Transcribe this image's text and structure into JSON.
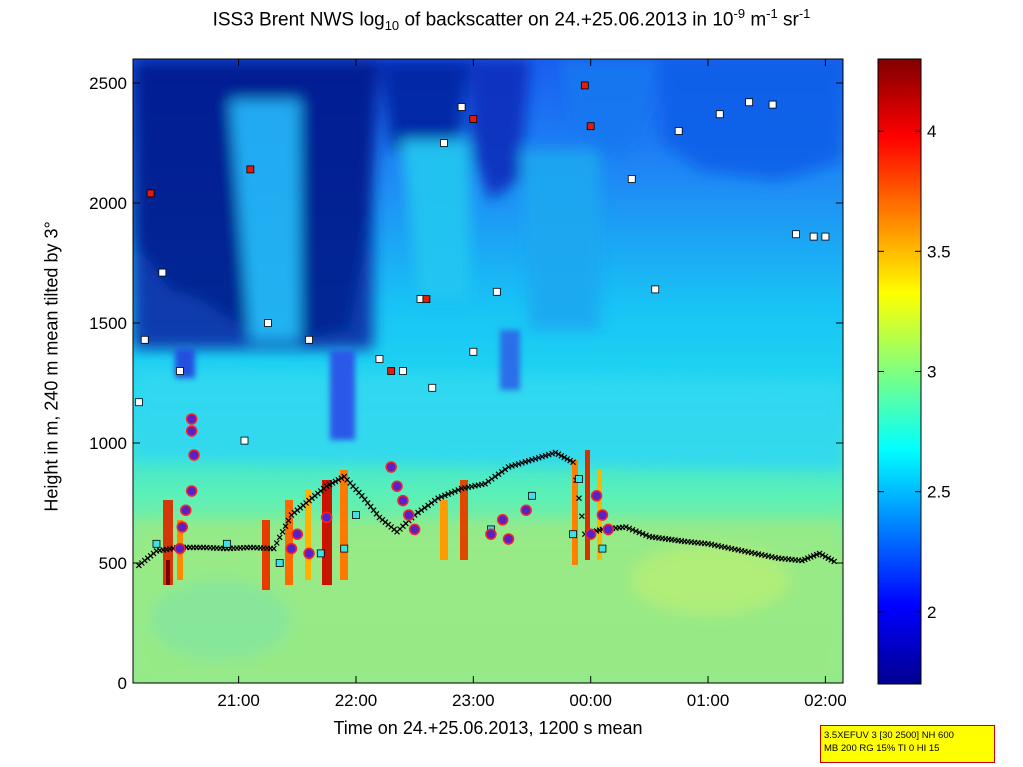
{
  "chart_data": {
    "type": "heatmap",
    "title": {
      "prefix": "ISS3 Brent NWS log",
      "sub": "10",
      "middle": " of backscatter on 24.+25.06.2013 in 10",
      "sup1": "-9",
      "unit1": " m",
      "sup2": "-1",
      "unit2": " sr",
      "sup3": "-1"
    },
    "xlabel": "Time on 24.+25.06.2013, 1200 s mean",
    "ylabel": "Height in m, 240 m mean tilted by 3°",
    "x_ticks": [
      "21:00",
      "22:00",
      "23:00",
      "00:00",
      "01:00",
      "02:00"
    ],
    "y_ticks": [
      0,
      500,
      1000,
      1500,
      2000,
      2500
    ],
    "ylim": [
      0,
      2600
    ],
    "xlim_hours": [
      20.1,
      26.15
    ],
    "colorbar": {
      "ticks": [
        2,
        2.5,
        3,
        3.5,
        4
      ],
      "range": [
        1.7,
        4.3
      ],
      "colormap": "jet"
    },
    "mixing_layer_height": {
      "marker": "black-x",
      "points": [
        [
          20.15,
          490
        ],
        [
          20.3,
          550
        ],
        [
          20.5,
          565
        ],
        [
          20.7,
          565
        ],
        [
          20.9,
          560
        ],
        [
          21.1,
          565
        ],
        [
          21.3,
          560
        ],
        [
          21.45,
          700
        ],
        [
          21.6,
          760
        ],
        [
          21.75,
          820
        ],
        [
          21.9,
          860
        ],
        [
          22.05,
          780
        ],
        [
          22.2,
          690
        ],
        [
          22.35,
          630
        ],
        [
          22.5,
          700
        ],
        [
          22.7,
          770
        ],
        [
          22.9,
          810
        ],
        [
          23.1,
          830
        ],
        [
          23.3,
          900
        ],
        [
          23.5,
          930
        ],
        [
          23.7,
          960
        ],
        [
          23.85,
          920
        ],
        [
          23.95,
          620
        ],
        [
          24.1,
          640
        ],
        [
          24.3,
          650
        ],
        [
          24.5,
          610
        ],
        [
          24.8,
          590
        ],
        [
          25.0,
          580
        ],
        [
          25.2,
          560
        ],
        [
          25.4,
          540
        ],
        [
          25.6,
          520
        ],
        [
          25.8,
          510
        ],
        [
          25.95,
          540
        ],
        [
          26.1,
          500
        ]
      ]
    },
    "cloud_base_detections": {
      "marker": "white-square",
      "points": [
        [
          20.15,
          1170
        ],
        [
          20.2,
          1430
        ],
        [
          20.35,
          1710
        ],
        [
          20.5,
          1300
        ],
        [
          21.05,
          1010
        ],
        [
          21.25,
          1500
        ],
        [
          21.6,
          1430
        ],
        [
          22.2,
          1350
        ],
        [
          22.4,
          1300
        ],
        [
          22.55,
          1600
        ],
        [
          22.65,
          1230
        ],
        [
          22.75,
          2250
        ],
        [
          22.9,
          2400
        ],
        [
          23.0,
          1380
        ],
        [
          23.2,
          1630
        ],
        [
          24.35,
          2100
        ],
        [
          24.55,
          1640
        ],
        [
          24.75,
          2300
        ],
        [
          25.1,
          2370
        ],
        [
          25.35,
          2420
        ],
        [
          25.55,
          2410
        ],
        [
          25.75,
          1870
        ],
        [
          25.9,
          1860
        ],
        [
          26.0,
          1860
        ]
      ]
    },
    "red_squares": {
      "marker": "red-square",
      "points": [
        [
          20.25,
          2040
        ],
        [
          21.1,
          2140
        ],
        [
          22.3,
          1300
        ],
        [
          22.6,
          1600
        ],
        [
          23.0,
          2350
        ],
        [
          23.95,
          2490
        ],
        [
          24.0,
          2320
        ]
      ]
    },
    "cyan_squares": {
      "marker": "cyan-square",
      "points": [
        [
          20.3,
          580
        ],
        [
          20.9,
          580
        ],
        [
          21.35,
          500
        ],
        [
          21.7,
          540
        ],
        [
          21.9,
          560
        ],
        [
          22.0,
          700
        ],
        [
          23.15,
          640
        ],
        [
          23.5,
          780
        ],
        [
          23.85,
          620
        ],
        [
          24.1,
          560
        ],
        [
          23.9,
          850
        ]
      ]
    },
    "precipitation_circles": {
      "marker": "purple-circle-red-edge",
      "points": [
        [
          20.6,
          1100
        ],
        [
          20.6,
          1050
        ],
        [
          20.62,
          950
        ],
        [
          20.6,
          800
        ],
        [
          20.55,
          720
        ],
        [
          20.52,
          650
        ],
        [
          20.5,
          560
        ],
        [
          21.45,
          560
        ],
        [
          21.5,
          620
        ],
        [
          21.6,
          540
        ],
        [
          21.75,
          690
        ],
        [
          22.3,
          900
        ],
        [
          22.35,
          820
        ],
        [
          22.4,
          760
        ],
        [
          22.45,
          700
        ],
        [
          22.5,
          640
        ],
        [
          23.15,
          620
        ],
        [
          23.25,
          680
        ],
        [
          23.3,
          600
        ],
        [
          23.45,
          720
        ],
        [
          24.05,
          780
        ],
        [
          24.1,
          700
        ],
        [
          24.15,
          640
        ],
        [
          24.0,
          620
        ]
      ]
    }
  },
  "infobox": {
    "line1": "3.5XEFUV 3 [30 2500] NH 600",
    "line2": "MB 200 RG 15% TI 0 HI 15"
  },
  "colors": {
    "infobox_bg": "#ffff00",
    "infobox_border": "#cc0000"
  }
}
